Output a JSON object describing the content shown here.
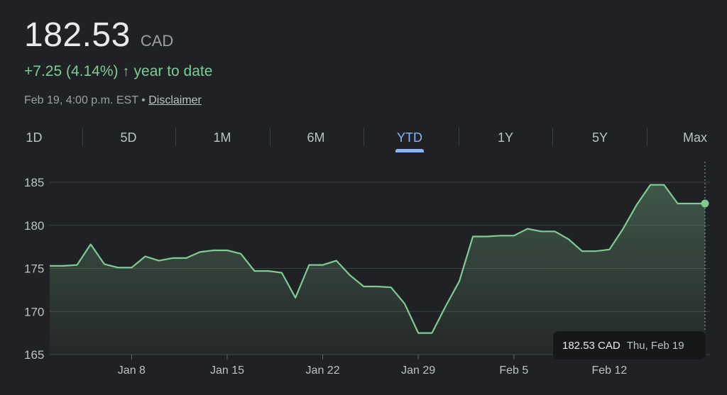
{
  "quote": {
    "price": "182.53",
    "currency": "CAD",
    "change": "+7.25 (4.14%)",
    "change_arrow": "↑",
    "change_period": "year to date",
    "timestamp": "Feb 19, 4:00 p.m. EST",
    "separator": "•",
    "disclaimer": "Disclaimer"
  },
  "tabs": [
    {
      "label": "1D"
    },
    {
      "label": "5D"
    },
    {
      "label": "1M"
    },
    {
      "label": "6M"
    },
    {
      "label": "YTD",
      "active": true
    },
    {
      "label": "1Y"
    },
    {
      "label": "5Y"
    },
    {
      "label": "Max"
    }
  ],
  "tooltip": {
    "value": "182.53 CAD",
    "date": "Thu, Feb 19"
  },
  "colors": {
    "line": "#81c995",
    "grid": "#3c4043",
    "accent": "#8ab4f8"
  },
  "chart_data": {
    "type": "area",
    "title": "",
    "xlabel": "",
    "ylabel": "",
    "ylim": [
      165,
      186
    ],
    "yticks": [
      165,
      170,
      175,
      180,
      185
    ],
    "xticks": [
      {
        "day": 8,
        "label": "Jan 8"
      },
      {
        "day": 15,
        "label": "Jan 15"
      },
      {
        "day": 22,
        "label": "Jan 22"
      },
      {
        "day": 29,
        "label": "Jan 29"
      },
      {
        "day": 36,
        "label": "Feb 5"
      },
      {
        "day": 43,
        "label": "Feb 12"
      }
    ],
    "grid": true,
    "series": [
      {
        "x": [
          2,
          3,
          4,
          5,
          6,
          7,
          8,
          9,
          10,
          11,
          12,
          13,
          14,
          15,
          16,
          17,
          18,
          19,
          20,
          21,
          22,
          23,
          24,
          25,
          26,
          27,
          28,
          29,
          30,
          31,
          32,
          33,
          34,
          35,
          36,
          37,
          38,
          39,
          40,
          41,
          42,
          43,
          44,
          45,
          46,
          47,
          48,
          49,
          50
        ],
        "y": [
          175.3,
          175.3,
          175.4,
          177.8,
          175.5,
          175.1,
          175.1,
          176.4,
          175.9,
          176.2,
          176.2,
          176.9,
          177.1,
          177.1,
          176.7,
          174.7,
          174.7,
          174.5,
          171.6,
          175.4,
          175.4,
          175.9,
          174.2,
          172.9,
          172.9,
          172.8,
          170.9,
          167.5,
          167.5,
          170.6,
          173.5,
          178.7,
          178.7,
          178.8,
          178.8,
          179.6,
          179.3,
          179.3,
          178.4,
          177.0,
          177.0,
          177.2,
          179.6,
          182.4,
          184.7,
          184.7,
          182.53,
          182.53,
          182.53
        ]
      }
    ]
  }
}
